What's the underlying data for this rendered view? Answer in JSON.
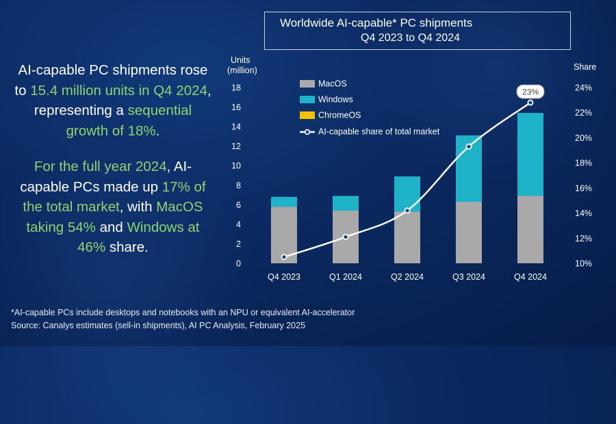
{
  "title": {
    "line1": "Worldwide AI-capable* PC shipments",
    "line2": "Q4 2023 to Q4 2024"
  },
  "left_text": {
    "p1": {
      "a": "AI-capable PC shipments rose to ",
      "b": "15.4 million units in Q4 2024",
      "c": ", representing a ",
      "d": "sequential growth of 18%",
      "e": "."
    },
    "p2": {
      "a": "For the full year 2024",
      "b": ", AI-capable PCs made up ",
      "c": "17% of the total market",
      "d": ", with ",
      "e": "MacOS taking 54%",
      "f": " and ",
      "g": "Windows at 46%",
      "h": " share."
    }
  },
  "footnote": {
    "line1": "*AI-capable PCs include desktops and notebooks with an NPU or equivalent AI-accelerator",
    "line2": "Source: Canalys estimates (sell-in shipments), AI PC Analysis, February 2025"
  },
  "colors": {
    "macos": "#a9a9a9",
    "windows": "#1fb3c9",
    "chromeos": "#f2c200",
    "share_line": "#ffffff"
  },
  "chart_data": {
    "type": "bar",
    "stacked": true,
    "categories": [
      "Q4 2023",
      "Q1 2024",
      "Q2 2024",
      "Q3 2024",
      "Q4 2024"
    ],
    "series": [
      {
        "name": "MacOS",
        "values": [
          5.8,
          5.4,
          5.3,
          6.3,
          6.9
        ]
      },
      {
        "name": "Windows",
        "values": [
          1.0,
          1.5,
          3.6,
          6.8,
          8.5
        ]
      },
      {
        "name": "ChromeOS",
        "values": [
          0.0,
          0.0,
          0.0,
          0.0,
          0.0
        ]
      }
    ],
    "line_series": {
      "name": "AI-capable share of total market",
      "values": [
        10.5,
        12.1,
        14.2,
        19.3,
        22.8
      ],
      "axis": "right",
      "label_last": "23%"
    },
    "ylabel_left": "Units (million)",
    "ylabel_right": "Share",
    "ylim_left": [
      0,
      18
    ],
    "yticks_left": [
      "0",
      "2",
      "4",
      "6",
      "8",
      "10",
      "12",
      "14",
      "16",
      "18"
    ],
    "ylim_right": [
      10,
      24
    ],
    "yticks_right": [
      "10%",
      "12%",
      "14%",
      "16%",
      "18%",
      "20%",
      "22%",
      "24%"
    ],
    "legend_position": "top-left",
    "grid": false
  }
}
